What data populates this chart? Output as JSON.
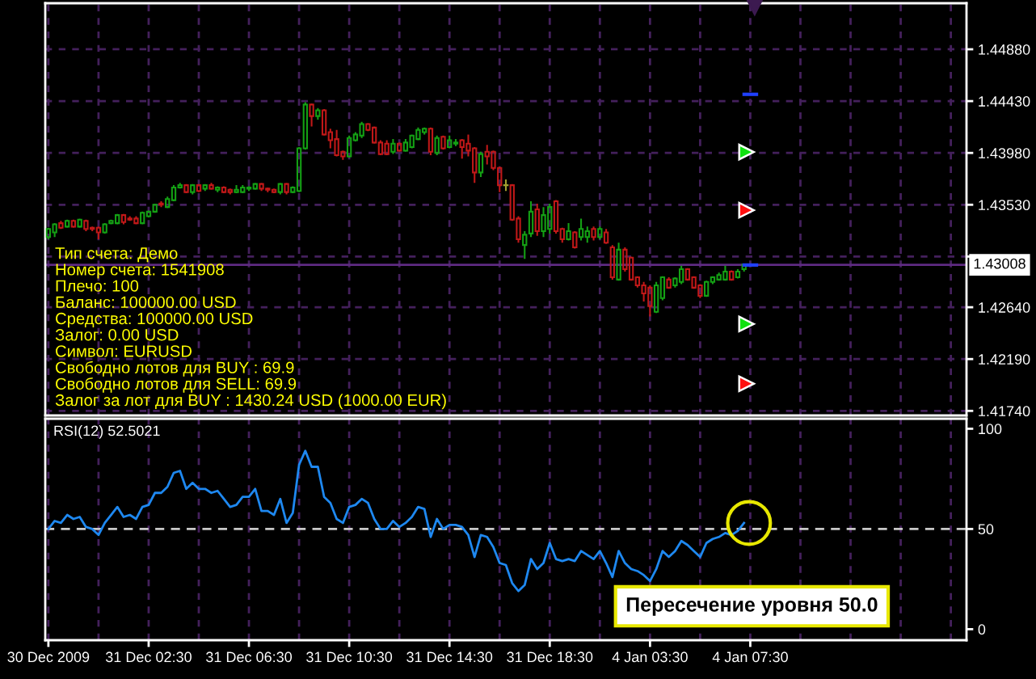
{
  "chart_data": [
    {
      "type": "candlestick",
      "categories": [
        null,
        null,
        null,
        null,
        null,
        null,
        null,
        null,
        null,
        null,
        null,
        null,
        null,
        null,
        null,
        null,
        null,
        null,
        null,
        null,
        null,
        null,
        null,
        null,
        null,
        null,
        null,
        null,
        null,
        null,
        null,
        null,
        null,
        null,
        null,
        null,
        null,
        null,
        null,
        null,
        null,
        null,
        null,
        null,
        null,
        null,
        null,
        null,
        null,
        null,
        null,
        null,
        null,
        null,
        null,
        null,
        null,
        null,
        null,
        null,
        null,
        null,
        null,
        null,
        null,
        null,
        null,
        null,
        null,
        null,
        null,
        null,
        null,
        null,
        null,
        null,
        null,
        null,
        null,
        null,
        null,
        null,
        null,
        null,
        null,
        null,
        null,
        null,
        null,
        null,
        null,
        null,
        null,
        null,
        null,
        null,
        null,
        null,
        null,
        null,
        null,
        null,
        null,
        null,
        null,
        null,
        null,
        null,
        null,
        null,
        null,
        null,
        null,
        null,
        null,
        null,
        null,
        null,
        null,
        null,
        null,
        null,
        null,
        null,
        null,
        null,
        null,
        null,
        null,
        null,
        null,
        null,
        null,
        null,
        null,
        null,
        null,
        null,
        null,
        null,
        null,
        null,
        null,
        null,
        null,
        null,
        null
      ],
      "ohlc": [
        [
          1.4325,
          1.4333,
          1.4323,
          1.4332
        ],
        [
          1.4329,
          1.4337,
          1.4325,
          1.4336
        ],
        [
          1.4337,
          1.4339,
          1.4332,
          1.4333
        ],
        [
          1.4334,
          1.434,
          1.4333,
          1.4339
        ],
        [
          1.4339,
          1.434,
          1.4333,
          1.4334
        ],
        [
          1.4334,
          1.4341,
          1.4333,
          1.434
        ],
        [
          1.4339,
          1.434,
          1.433,
          1.4332
        ],
        [
          1.4333,
          1.4334,
          1.433,
          1.4332
        ],
        [
          1.4333,
          1.4334,
          1.4323,
          1.4329
        ],
        [
          1.4329,
          1.4337,
          1.4328,
          1.4336
        ],
        [
          1.4337,
          1.434,
          1.4336,
          1.4339
        ],
        [
          1.4337,
          1.4345,
          1.4336,
          1.4344
        ],
        [
          1.4344,
          1.4345,
          1.4336,
          1.4338
        ],
        [
          1.4341,
          1.4343,
          1.4339,
          1.434
        ],
        [
          1.4341,
          1.4343,
          1.4336,
          1.4337
        ],
        [
          1.4337,
          1.4347,
          1.4336,
          1.4346
        ],
        [
          1.4343,
          1.4348,
          1.4342,
          1.4347
        ],
        [
          1.4347,
          1.4354,
          1.4346,
          1.4353
        ],
        [
          1.4354,
          1.4356,
          1.4351,
          1.4353
        ],
        [
          1.4351,
          1.436,
          1.435,
          1.4358
        ],
        [
          1.4357,
          1.437,
          1.4356,
          1.4368
        ],
        [
          1.4368,
          1.4372,
          1.4367,
          1.437
        ],
        [
          1.437,
          1.4371,
          1.4363,
          1.4364
        ],
        [
          1.4364,
          1.4371,
          1.4362,
          1.437
        ],
        [
          1.437,
          1.4371,
          1.4364,
          1.4365
        ],
        [
          1.4367,
          1.4371,
          1.4365,
          1.437
        ],
        [
          1.437,
          1.4372,
          1.4366,
          1.4367
        ],
        [
          1.4366,
          1.4369,
          1.4364,
          1.4368
        ],
        [
          1.4368,
          1.4369,
          1.4363,
          1.4364
        ],
        [
          1.4366,
          1.4367,
          1.4362,
          1.4364
        ],
        [
          1.4364,
          1.437,
          1.4363,
          1.4366
        ],
        [
          1.4364,
          1.437,
          1.4363,
          1.4368
        ],
        [
          1.4367,
          1.4369,
          1.4365,
          1.4368
        ],
        [
          1.4367,
          1.4372,
          1.4366,
          1.4371
        ],
        [
          1.4371,
          1.4372,
          1.4365,
          1.4367
        ],
        [
          1.4367,
          1.4368,
          1.4364,
          1.4366
        ],
        [
          1.4366,
          1.4367,
          1.4363,
          1.4364
        ],
        [
          1.4364,
          1.4372,
          1.4362,
          1.4371
        ],
        [
          1.4371,
          1.4372,
          1.4362,
          1.4364
        ],
        [
          1.4364,
          1.4369,
          1.4363,
          1.4368
        ],
        [
          1.4365,
          1.4403,
          1.4364,
          1.4402
        ],
        [
          1.4402,
          1.4442,
          1.4401,
          1.444
        ],
        [
          1.444,
          1.4441,
          1.4421,
          1.443
        ],
        [
          1.443,
          1.4437,
          1.4427,
          1.4435
        ],
        [
          1.4435,
          1.4436,
          1.4413,
          1.4414
        ],
        [
          1.4416,
          1.4419,
          1.4402,
          1.4409
        ],
        [
          1.441,
          1.4418,
          1.4395,
          1.4396
        ],
        [
          1.4399,
          1.44,
          1.4392,
          1.4395
        ],
        [
          1.4395,
          1.4413,
          1.4394,
          1.4411
        ],
        [
          1.4409,
          1.4416,
          1.4408,
          1.4414
        ],
        [
          1.4413,
          1.4425,
          1.4411,
          1.4423
        ],
        [
          1.4423,
          1.4424,
          1.4417,
          1.4418
        ],
        [
          1.442,
          1.4421,
          1.4406,
          1.4407
        ],
        [
          1.4407,
          1.4409,
          1.4396,
          1.4397
        ],
        [
          1.4406,
          1.4409,
          1.4396,
          1.4397
        ],
        [
          1.4399,
          1.441,
          1.4397,
          1.4406
        ],
        [
          1.4406,
          1.4407,
          1.4399,
          1.44
        ],
        [
          1.44,
          1.441,
          1.4399,
          1.4407
        ],
        [
          1.4403,
          1.4414,
          1.4402,
          1.4413
        ],
        [
          1.441,
          1.442,
          1.4409,
          1.4418
        ],
        [
          1.4416,
          1.442,
          1.4414,
          1.4419
        ],
        [
          1.4419,
          1.442,
          1.4396,
          1.4399
        ],
        [
          1.4398,
          1.4413,
          1.4396,
          1.4411
        ],
        [
          1.4412,
          1.4413,
          1.4401,
          1.4402
        ],
        [
          1.4403,
          1.4413,
          1.4402,
          1.4409
        ],
        [
          1.4406,
          1.441,
          1.4404,
          1.4407
        ],
        [
          1.4409,
          1.441,
          1.4393,
          1.4403
        ],
        [
          1.4406,
          1.4414,
          1.4395,
          1.44
        ],
        [
          1.4402,
          1.4403,
          1.4372,
          1.4381
        ],
        [
          1.4381,
          1.4399,
          1.4377,
          1.4397
        ],
        [
          1.4399,
          1.4405,
          1.4388,
          1.4395
        ],
        [
          1.4399,
          1.44,
          1.4383,
          1.4385
        ],
        [
          1.4385,
          1.4386,
          1.4364,
          1.437
        ],
        [
          1.437,
          1.4375,
          1.4365,
          1.437
        ],
        [
          1.437,
          1.4371,
          1.4339,
          1.434
        ],
        [
          1.4341,
          1.4343,
          1.432,
          1.4323
        ],
        [
          1.4318,
          1.433,
          1.4306,
          1.4327
        ],
        [
          1.4328,
          1.4356,
          1.4325,
          1.4347
        ],
        [
          1.4349,
          1.4354,
          1.4326,
          1.433
        ],
        [
          1.433,
          1.4351,
          1.4325,
          1.4344
        ],
        [
          1.4332,
          1.4354,
          1.4328,
          1.4351
        ],
        [
          1.4356,
          1.4357,
          1.4328,
          1.433
        ],
        [
          1.4332,
          1.4333,
          1.432,
          1.4323
        ],
        [
          1.4323,
          1.4337,
          1.4322,
          1.433
        ],
        [
          1.4329,
          1.433,
          1.4315,
          1.4316
        ],
        [
          1.4325,
          1.4341,
          1.4322,
          1.4332
        ],
        [
          1.4325,
          1.4334,
          1.432,
          1.433
        ],
        [
          1.4332,
          1.4334,
          1.4322,
          1.4325
        ],
        [
          1.4325,
          1.4334,
          1.4323,
          1.4332
        ],
        [
          1.4329,
          1.4332,
          1.4319,
          1.432
        ],
        [
          1.4316,
          1.4318,
          1.4288,
          1.429
        ],
        [
          1.4288,
          1.432,
          1.4287,
          1.4314
        ],
        [
          1.4314,
          1.4316,
          1.4295,
          1.4297
        ],
        [
          1.4307,
          1.4308,
          1.4287,
          1.4288
        ],
        [
          1.429,
          1.4291,
          1.4281,
          1.4283
        ],
        [
          1.4283,
          1.4286,
          1.4269,
          1.4276
        ],
        [
          1.4281,
          1.4283,
          1.4256,
          1.4265
        ],
        [
          1.426,
          1.4286,
          1.4259,
          1.4283
        ],
        [
          1.4272,
          1.4291,
          1.427,
          1.429
        ],
        [
          1.4288,
          1.429,
          1.428,
          1.4281
        ],
        [
          1.4283,
          1.429,
          1.4281,
          1.4289
        ],
        [
          1.4286,
          1.43,
          1.4284,
          1.4297
        ],
        [
          1.4297,
          1.4298,
          1.4287,
          1.4288
        ],
        [
          1.429,
          1.4291,
          1.428,
          1.4281
        ],
        [
          1.4283,
          1.4284,
          1.4272,
          1.4274
        ],
        [
          1.4274,
          1.4287,
          1.4273,
          1.4286
        ],
        [
          1.4286,
          1.4291,
          1.4284,
          1.429
        ],
        [
          1.4288,
          1.4294,
          1.4287,
          1.4292
        ],
        [
          1.4288,
          1.43,
          1.4287,
          1.4295
        ],
        [
          1.4295,
          1.4296,
          1.4287,
          1.4288
        ],
        [
          1.429,
          1.4297,
          1.4289,
          1.4295
        ],
        [
          1.4297,
          1.4301,
          1.4295,
          1.4301
        ],
        null,
        null,
        null,
        null,
        null,
        null,
        null,
        null,
        null,
        null,
        null,
        null,
        null,
        null,
        null,
        null,
        null,
        null,
        null,
        null,
        null,
        null,
        null,
        null,
        null,
        null,
        null,
        null,
        null,
        null,
        null,
        null,
        null,
        null,
        null
      ],
      "colors": [
        "#14a014",
        "#14a014",
        "#c01818",
        "#14a014",
        "#c01818",
        "#14a014",
        "#c01818",
        "#c01818",
        "#c01818",
        "#14a014",
        "#14a014",
        "#14a014",
        "#c01818",
        "#c01818",
        "#c01818",
        "#14a014",
        "#14a014",
        "#14a014",
        "#c01818",
        "#14a014",
        "#14a014",
        "#14a014",
        "#c01818",
        "#14a014",
        "#c01818",
        "#14a014",
        "#c01818",
        "#14a014",
        "#c01818",
        "#c01818",
        "#14a014",
        "#14a014",
        "#14a014",
        "#14a014",
        "#c01818",
        "#c01818",
        "#c01818",
        "#14a014",
        "#c01818",
        "#14a014",
        "#14a014",
        "#14a014",
        "#c01818",
        "#14a014",
        "#c01818",
        "#c01818",
        "#c01818",
        "#c01818",
        "#14a014",
        "#14a014",
        "#14a014",
        "#c01818",
        "#c01818",
        "#c01818",
        "#c01818",
        "#14a014",
        "#c01818",
        "#14a014",
        "#14a014",
        "#14a014",
        "#14a014",
        "#c01818",
        "#14a014",
        "#c01818",
        "#14a014",
        "#14a014",
        "#c01818",
        "#c01818",
        "#c01818",
        "#14a014",
        "#c01818",
        "#c01818",
        "#c01818",
        "#a0a030",
        "#c01818",
        "#c01818",
        "#14a014",
        "#14a014",
        "#c01818",
        "#14a014",
        "#14a014",
        "#c01818",
        "#c01818",
        "#14a014",
        "#c01818",
        "#14a014",
        "#14a014",
        "#c01818",
        "#14a014",
        "#c01818",
        "#c01818",
        "#14a014",
        "#c01818",
        "#c01818",
        "#c01818",
        "#c01818",
        "#c01818",
        "#14a014",
        "#14a014",
        "#c01818",
        "#14a014",
        "#14a014",
        "#c01818",
        "#c01818",
        "#c01818",
        "#14a014",
        "#14a014",
        "#14a014",
        "#14a014",
        "#c01818",
        "#14a014",
        "#14a014",
        null,
        null,
        null,
        null,
        null,
        null,
        null,
        null,
        null,
        null,
        null,
        null,
        null,
        null,
        null,
        null,
        null,
        null,
        null,
        null,
        null,
        null,
        null,
        null,
        null,
        null,
        null,
        null,
        null,
        null,
        null,
        null,
        null,
        null,
        null
      ],
      "ylim": [
        1.417,
        1.4528
      ],
      "yticks": [
        {
          "value": 1.4488,
          "label": "1.44880"
        },
        {
          "value": 1.4443,
          "label": "1.44430"
        },
        {
          "value": 1.4398,
          "label": "1.43980"
        },
        {
          "value": 1.4353,
          "label": "1.43530"
        },
        {
          "value": 1.4308,
          "label": null
        },
        {
          "value": 1.4264,
          "label": "1.42640"
        },
        {
          "value": 1.4219,
          "label": "1.42190"
        },
        {
          "value": 1.4174,
          "label": "1.41740"
        }
      ],
      "grid": true,
      "tick_labels": "y",
      "ref_lines": [
        {
          "axis": "y",
          "value": 1.43008,
          "label": "1.43008",
          "color": "#5e2a82"
        }
      ],
      "annotations": [
        "Тип счета: Демо",
        "Номер счета: 1541908",
        "Плечо: 100",
        "Баланс: 100000.00 USD",
        "Средства: 100000.00 USD",
        "Залог: 0.00 USD",
        "Символ: EURUSD",
        "Свободно лотов для BUY : 69.9",
        "Свободно лотов для SELL: 69.9",
        "Залог за лот для BUY : 1430.24 USD (1000.00 EUR)"
      ]
    },
    {
      "type": "line",
      "title": "RSI(12) 52.5021",
      "categories": [
        "30 Dec 2009",
        null,
        null,
        null,
        null,
        null,
        null,
        null,
        null,
        null,
        null,
        null,
        null,
        null,
        null,
        null,
        "31 Dec 02:30",
        null,
        null,
        null,
        null,
        null,
        null,
        null,
        null,
        null,
        null,
        null,
        null,
        null,
        null,
        null,
        "31 Dec 06:30",
        null,
        null,
        null,
        null,
        null,
        null,
        null,
        null,
        null,
        null,
        null,
        null,
        null,
        null,
        null,
        "31 Dec 10:30",
        null,
        null,
        null,
        null,
        null,
        null,
        null,
        null,
        null,
        null,
        null,
        null,
        null,
        null,
        null,
        "31 Dec 14:30",
        null,
        null,
        null,
        null,
        null,
        null,
        null,
        null,
        null,
        null,
        null,
        null,
        null,
        null,
        null,
        "31 Dec 18:30",
        null,
        null,
        null,
        null,
        null,
        null,
        null,
        null,
        null,
        null,
        null,
        null,
        null,
        null,
        null,
        "4 Jan 03:30",
        null,
        null,
        null,
        null,
        null,
        null,
        null,
        null,
        null,
        null,
        null,
        null,
        null,
        null,
        null,
        "4 Jan 07:30",
        null,
        null,
        null,
        null,
        null,
        null,
        null,
        null,
        null,
        null,
        null,
        null,
        null,
        null,
        null,
        null,
        null,
        null,
        null,
        null,
        null,
        null,
        null,
        null,
        null,
        null,
        null,
        null,
        null,
        null,
        null,
        null,
        null,
        null
      ],
      "series": [
        {
          "color": "#1e88f0",
          "values": [
            50,
            54,
            53,
            57,
            55,
            56,
            51,
            50,
            47,
            53,
            57,
            61,
            56,
            57,
            55,
            61,
            62,
            68,
            68,
            71,
            78,
            79,
            70,
            73,
            70,
            70,
            68,
            69,
            65,
            61,
            62,
            66,
            66,
            70,
            59,
            59,
            57,
            65,
            53,
            58,
            82,
            89,
            81,
            81,
            66,
            63,
            55,
            53,
            61,
            62,
            65,
            63,
            55,
            50,
            50,
            54,
            51,
            53,
            56,
            61,
            60,
            46,
            55,
            50,
            52,
            52,
            51,
            47,
            36,
            47,
            46,
            41,
            33,
            32,
            23,
            19,
            22,
            35,
            30,
            33,
            43,
            35,
            34,
            35,
            34,
            39,
            37,
            35,
            39,
            33,
            26,
            39,
            33,
            30,
            29,
            27,
            24,
            30,
            39,
            36,
            39,
            44,
            42,
            39,
            36,
            43,
            45,
            46,
            48,
            47,
            49,
            53,
            null,
            null,
            null,
            null,
            null,
            null,
            null,
            null,
            null,
            null,
            null,
            null,
            null,
            null,
            null,
            null,
            null,
            null,
            null,
            null,
            null,
            null,
            null,
            null,
            null,
            null,
            null,
            null,
            null,
            null,
            null,
            null,
            null,
            null,
            null
          ]
        }
      ],
      "ylim": [
        -5.5,
        105
      ],
      "yticks": [
        0,
        50,
        100
      ],
      "grid": "x",
      "ref_lines": [
        {
          "axis": "y",
          "value": 50,
          "color": "#c8c8c8",
          "line_style": "dashed"
        }
      ],
      "annotations": [
        "Пересечение уровня 50.0"
      ]
    }
  ]
}
